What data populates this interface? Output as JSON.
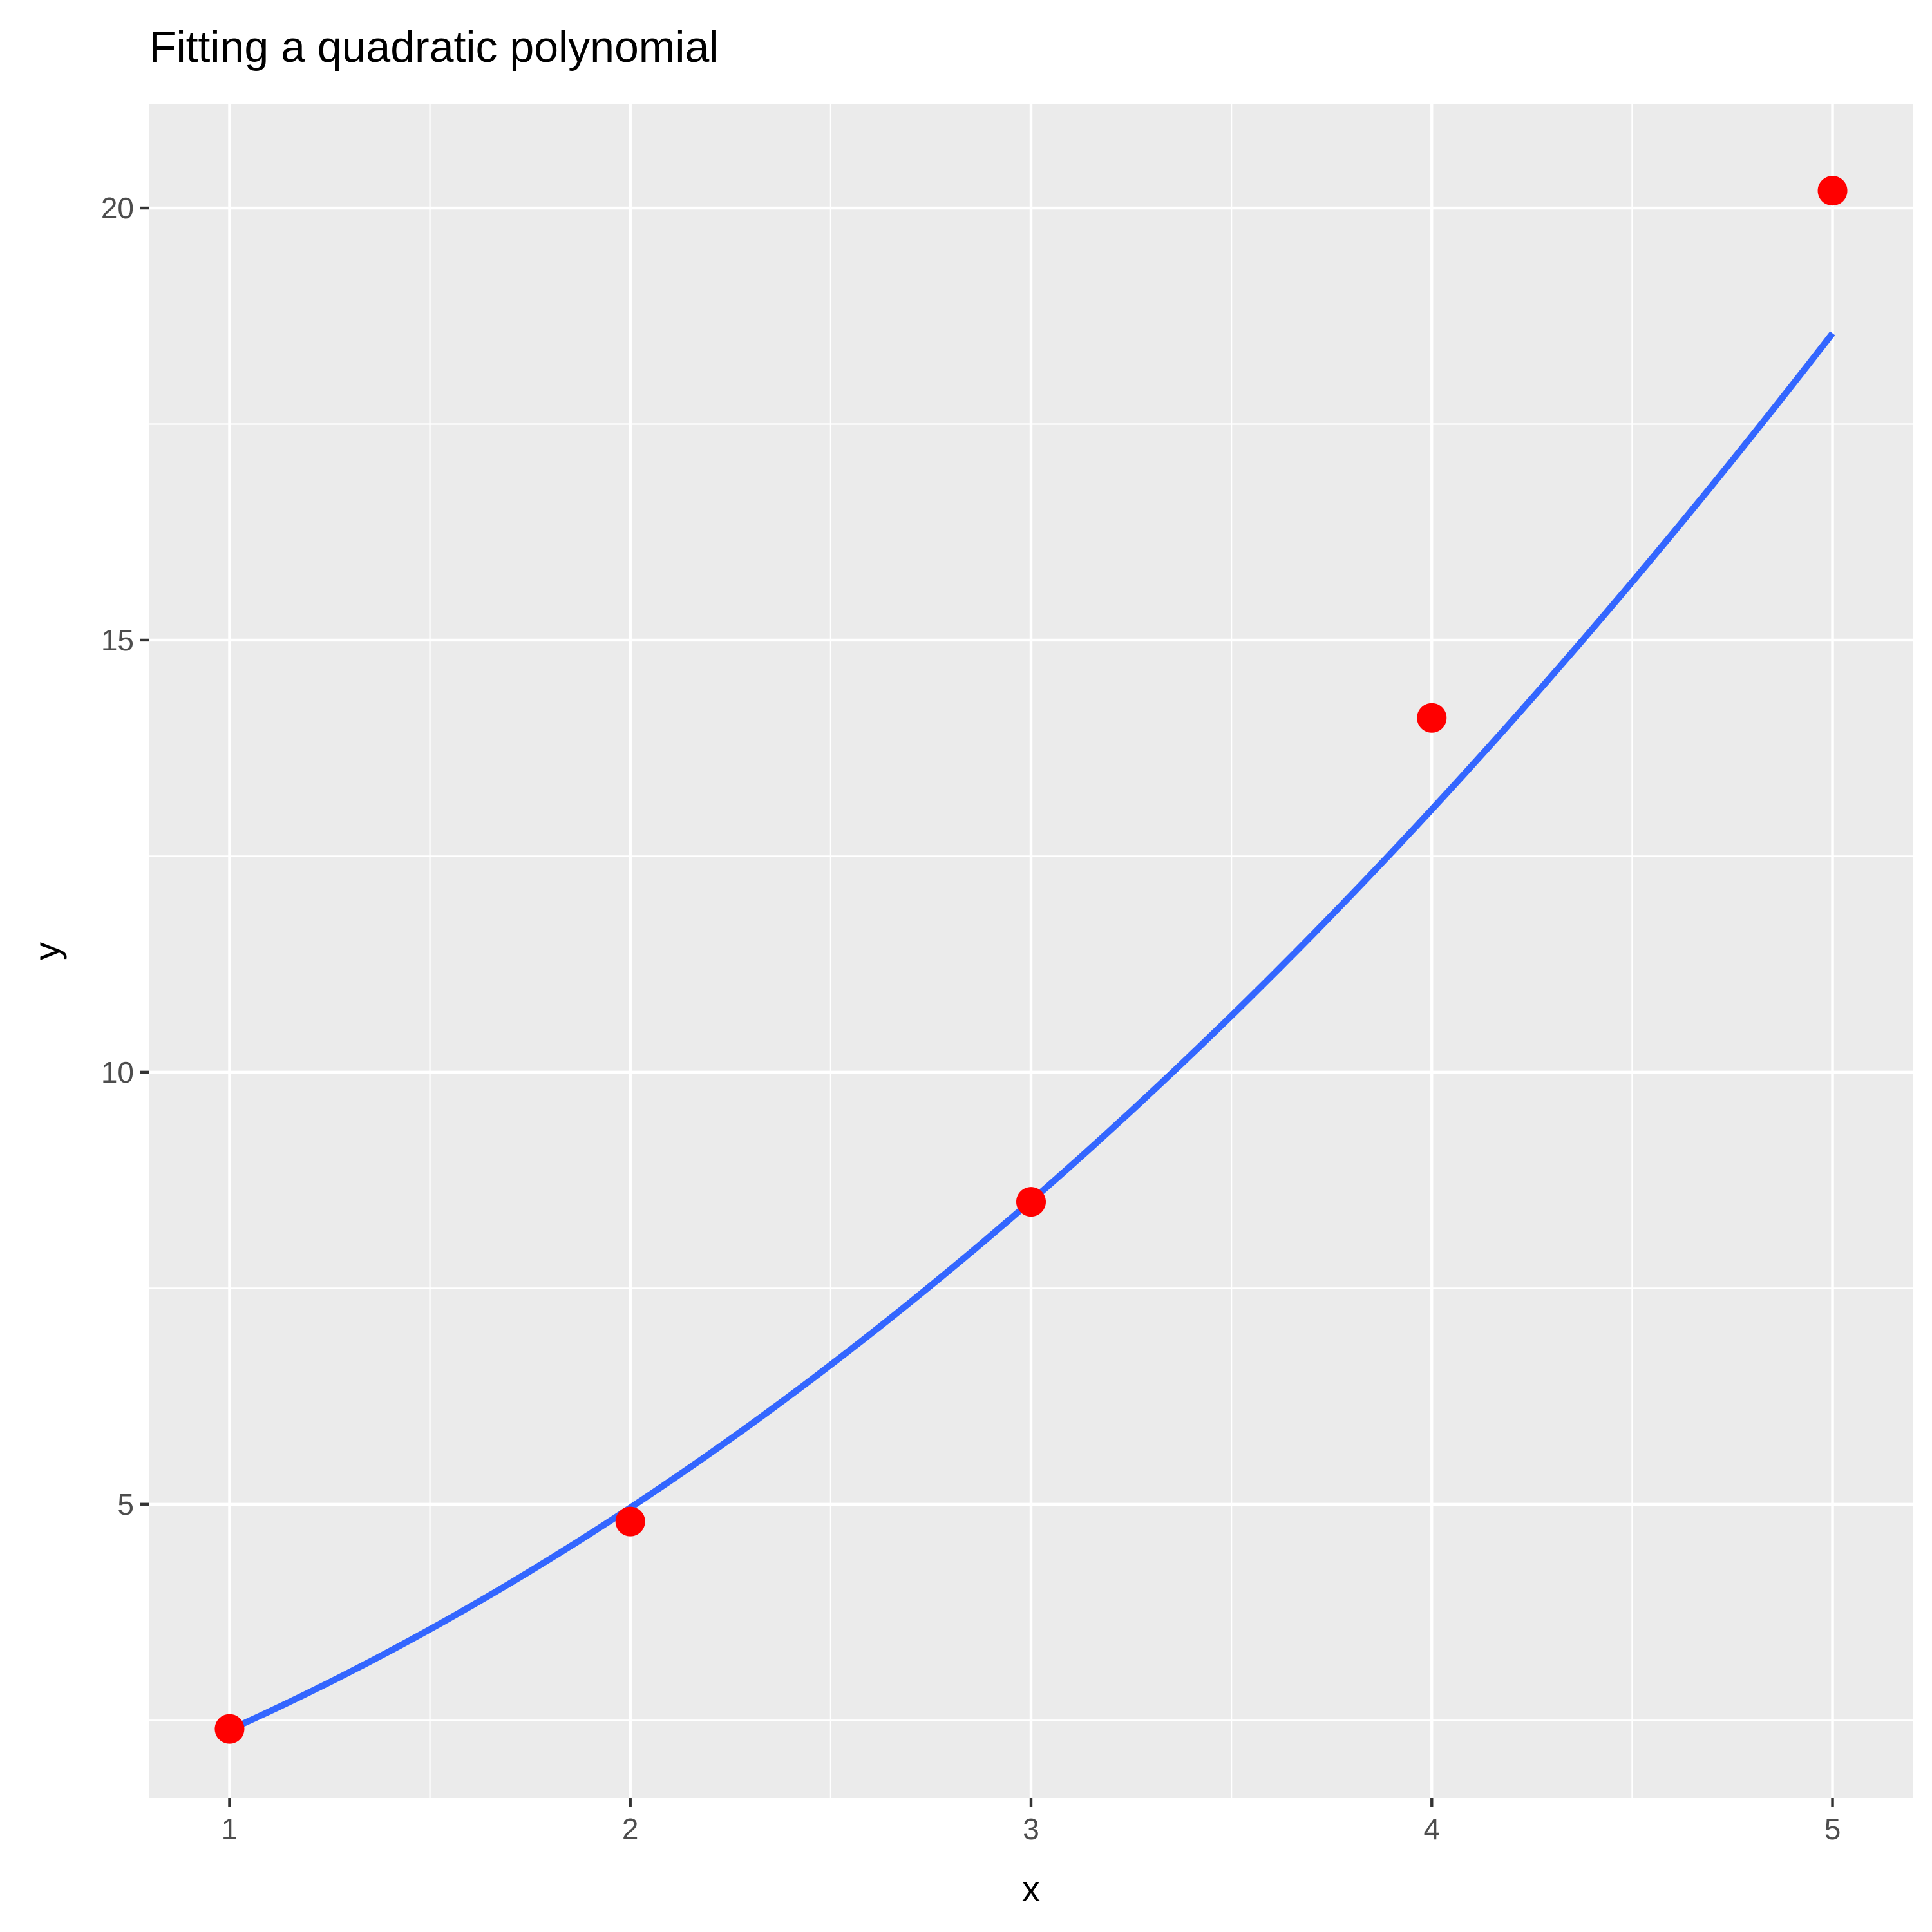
{
  "chart_data": {
    "type": "scatter",
    "title": "Fitting a quadratic polynomial",
    "xlabel": "x",
    "ylabel": "y",
    "xlim": [
      0.8,
      5.2
    ],
    "ylim": [
      1.6,
      21.2
    ],
    "x_ticks": [
      1,
      2,
      3,
      4,
      5
    ],
    "y_ticks": [
      5,
      10,
      15,
      20
    ],
    "x_tick_labels": [
      "1",
      "2",
      "3",
      "4",
      "5"
    ],
    "y_tick_labels": [
      "5",
      "10",
      "15",
      "20"
    ],
    "x_minor_breaks": [
      1.5,
      2.5,
      3.5,
      4.5
    ],
    "y_minor_breaks": [
      2.5,
      7.5,
      12.5,
      17.5
    ],
    "grid": true,
    "series": [
      {
        "kind": "points",
        "x": [
          1,
          2,
          3,
          4,
          5
        ],
        "y": [
          2.4,
          4.8,
          8.5,
          14.1,
          20.2
        ]
      },
      {
        "kind": "fitted-curve",
        "coefficients": {
          "a": 0.49,
          "b": 1.1,
          "c": 0.8
        }
      }
    ],
    "colors": {
      "panel": "#ebebeb",
      "grid": "#ffffff",
      "points": "#ff0000",
      "curve": "#3366ff"
    }
  }
}
